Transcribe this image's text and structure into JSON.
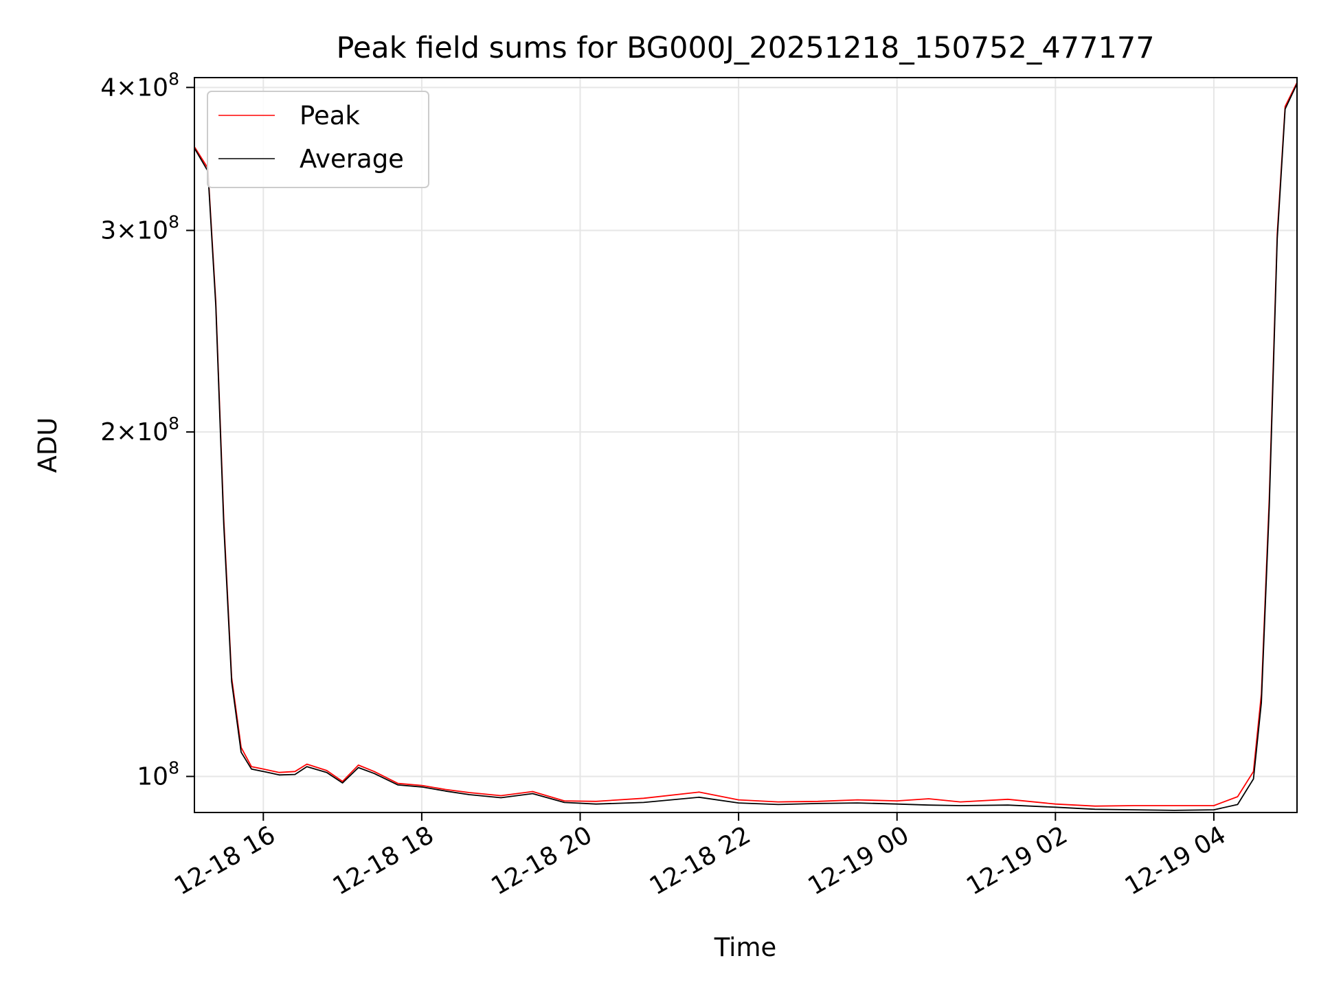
{
  "chart_data": {
    "type": "line",
    "title": "Peak field sums for BG000J_20251218_150752_477177",
    "xlabel": "Time",
    "ylabel": "ADU",
    "yscale": "log",
    "grid": true,
    "legend_location": "upper-left",
    "x_range_hours": [
      15.13,
      29.05
    ],
    "ylim": [
      93000000,
      408000000
    ],
    "x_ticks": [
      {
        "label": "12-18 16",
        "hour": 16
      },
      {
        "label": "12-18 18",
        "hour": 18
      },
      {
        "label": "12-18 20",
        "hour": 20
      },
      {
        "label": "12-18 22",
        "hour": 22
      },
      {
        "label": "12-19 00",
        "hour": 24
      },
      {
        "label": "12-19 02",
        "hour": 26
      },
      {
        "label": "12-19 04",
        "hour": 28
      }
    ],
    "y_ticks": [
      {
        "mantissa": "4×10",
        "exp": "8",
        "value": 400000000
      },
      {
        "mantissa": "3×10",
        "exp": "8",
        "value": 300000000
      },
      {
        "mantissa": "2×10",
        "exp": "8",
        "value": 200000000
      },
      {
        "mantissa": "10",
        "exp": "8",
        "value": 100000000
      }
    ],
    "x_unit": "hours since 2025-12-18 00:00",
    "series": [
      {
        "name": "Peak",
        "color": "#ff0000",
        "x": [
          15.13,
          15.3,
          15.4,
          15.5,
          15.6,
          15.72,
          15.85,
          16.0,
          16.2,
          16.4,
          16.55,
          16.8,
          17.0,
          17.2,
          17.4,
          17.7,
          18.0,
          18.3,
          18.6,
          19.0,
          19.4,
          19.8,
          20.2,
          20.8,
          21.5,
          22.0,
          22.5,
          23.0,
          23.5,
          24.0,
          24.4,
          24.8,
          25.4,
          26.0,
          26.5,
          27.0,
          27.5,
          28.0,
          28.3,
          28.5,
          28.6,
          28.7,
          28.8,
          28.9,
          29.05
        ],
        "y": [
          355000000,
          340000000,
          260000000,
          168000000,
          122000000,
          106000000,
          102000000,
          101500000,
          100800000,
          101000000,
          102500000,
          101200000,
          99000000,
          102300000,
          101000000,
          98600000,
          98200000,
          97400000,
          96800000,
          96200000,
          97000000,
          95200000,
          95100000,
          95700000,
          96900000,
          95400000,
          95000000,
          95100000,
          95400000,
          95200000,
          95600000,
          95000000,
          95500000,
          94600000,
          94200000,
          94300000,
          94300000,
          94300000,
          96000000,
          101000000,
          118000000,
          175000000,
          298000000,
          385000000,
          404000000
        ]
      },
      {
        "name": "Average",
        "color": "#000000",
        "x": [
          15.13,
          15.3,
          15.4,
          15.5,
          15.6,
          15.72,
          15.85,
          16.0,
          16.2,
          16.4,
          16.55,
          16.8,
          17.0,
          17.2,
          17.4,
          17.7,
          18.0,
          18.3,
          18.6,
          19.0,
          19.4,
          19.8,
          20.2,
          20.8,
          21.5,
          22.0,
          22.5,
          23.0,
          23.5,
          24.0,
          24.4,
          24.8,
          25.4,
          26.0,
          26.5,
          27.0,
          27.5,
          28.0,
          28.3,
          28.5,
          28.6,
          28.7,
          28.8,
          28.9,
          29.05
        ],
        "y": [
          354000000,
          338000000,
          258000000,
          166000000,
          121000000,
          105000000,
          101500000,
          101000000,
          100300000,
          100400000,
          102000000,
          100800000,
          98700000,
          101800000,
          100600000,
          98300000,
          97900000,
          97100000,
          96400000,
          95800000,
          96600000,
          94900000,
          94600000,
          94900000,
          95900000,
          94800000,
          94500000,
          94700000,
          94800000,
          94600000,
          94400000,
          94300000,
          94400000,
          94000000,
          93600000,
          93500000,
          93400000,
          93500000,
          94500000,
          99500000,
          116000000,
          172000000,
          295000000,
          383000000,
          403000000
        ]
      }
    ]
  }
}
